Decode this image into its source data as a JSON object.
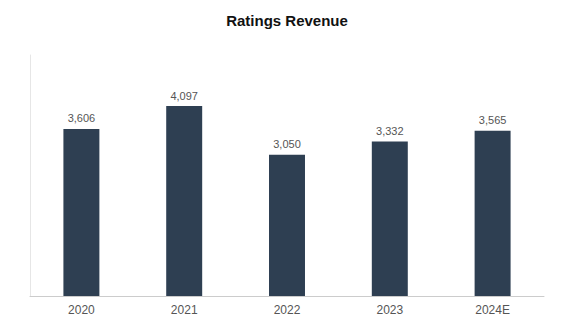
{
  "chart_data": {
    "type": "bar",
    "title": "Ratings Revenue",
    "categories": [
      "2020",
      "2021",
      "2022",
      "2023",
      "2024E"
    ],
    "values": [
      3606,
      4097,
      3050,
      3332,
      3565
    ],
    "value_labels": [
      "3,606",
      "4,097",
      "3,050",
      "3,332",
      "3,565"
    ],
    "data_labels": true,
    "color": "#2e3f52",
    "ylim": [
      0,
      5200
    ],
    "grid": false,
    "tick_labels": "x"
  }
}
